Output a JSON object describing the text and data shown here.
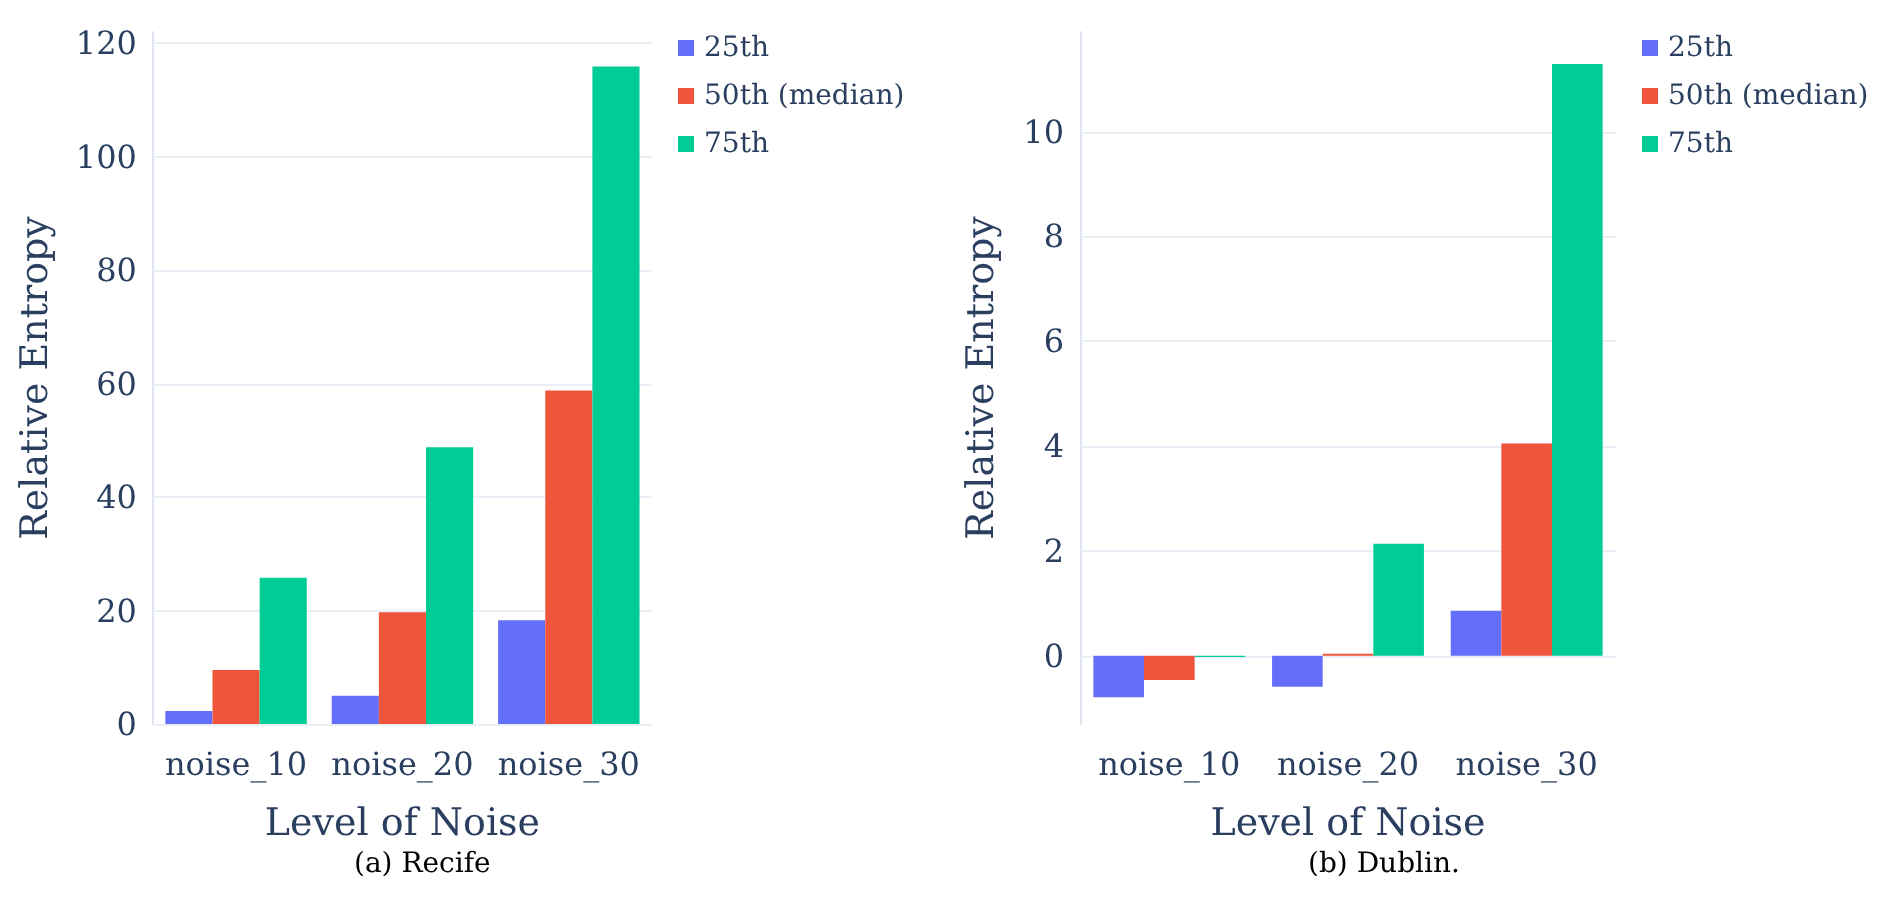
{
  "chart_data": [
    {
      "type": "bar",
      "xlabel": "Level of Noise",
      "ylabel": "Relative Entropy",
      "categories": [
        "noise_10",
        "noise_20",
        "noise_30"
      ],
      "series": [
        {
          "name": "25th",
          "color": "#636efa",
          "values": [
            2.3,
            5.0,
            18.3
          ]
        },
        {
          "name": "50th (median)",
          "color": "#ef553b",
          "values": [
            9.5,
            19.7,
            58.8
          ]
        },
        {
          "name": "75th",
          "color": "#00cc96",
          "values": [
            25.8,
            48.8,
            115.9
          ]
        }
      ],
      "ylim": [
        0,
        122
      ],
      "yticks": [
        0,
        20,
        40,
        60,
        80,
        100,
        120
      ],
      "grid": "y",
      "legend": "top right",
      "annotations": [
        "(a) Recife"
      ]
    },
    {
      "type": "bar",
      "xlabel": "Level of Noise",
      "ylabel": "Relative Entropy",
      "categories": [
        "noise_10",
        "noise_20",
        "noise_30"
      ],
      "series": [
        {
          "name": "25th",
          "color": "#636efa",
          "values": [
            -0.79,
            -0.59,
            0.86
          ]
        },
        {
          "name": "50th (median)",
          "color": "#ef553b",
          "values": [
            -0.46,
            0.04,
            4.05
          ]
        },
        {
          "name": "75th",
          "color": "#00cc96",
          "values": [
            -0.02,
            2.14,
            11.29
          ]
        }
      ],
      "ylim": [
        -1.3,
        11.9
      ],
      "yticks": [
        0,
        2,
        4,
        6,
        8,
        10
      ],
      "grid": "y",
      "legend": "top right",
      "annotations": [
        "(b) Dublin."
      ]
    }
  ]
}
